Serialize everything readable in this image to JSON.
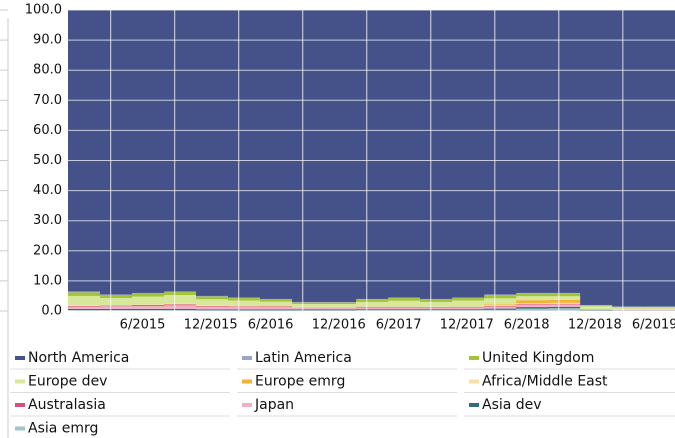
{
  "chart_data": {
    "type": "stacked_area",
    "x": [
      "2/2015",
      "5/2015",
      "8/2015",
      "11/2015",
      "2/2016",
      "5/2016",
      "8/2016",
      "11/2016",
      "2/2017",
      "5/2017",
      "8/2017",
      "11/2017",
      "2/2018",
      "5/2018",
      "8/2018",
      "11/2018",
      "2/2019",
      "5/2019",
      "8/2019"
    ],
    "xlim": [
      "2/2015",
      "2/2020"
    ],
    "xticks": [
      "6/2015",
      "12/2015",
      "6/2016",
      "12/2016",
      "6/2017",
      "12/2017",
      "6/2018",
      "12/2018",
      "6/2019"
    ],
    "ylim": [
      0,
      100
    ],
    "yticks": [
      {
        "value": 0,
        "label": "0.0"
      },
      {
        "value": 10,
        "label": "10.0"
      },
      {
        "value": 20,
        "label": "20.0"
      },
      {
        "value": 30,
        "label": "30.0"
      },
      {
        "value": 40,
        "label": "40.0"
      },
      {
        "value": 50,
        "label": "50.0"
      },
      {
        "value": 60,
        "label": "60.0"
      },
      {
        "value": 70,
        "label": "70.0"
      },
      {
        "value": 80,
        "label": "80.0"
      },
      {
        "value": 90,
        "label": "90.0"
      },
      {
        "value": 100,
        "label": "100.0"
      }
    ],
    "grid": true,
    "series": [
      {
        "name": "North America",
        "color": "#45528a",
        "values": [
          93.5,
          94.5,
          94,
          93.5,
          95,
          95.5,
          96,
          97,
          97,
          96,
          95.5,
          96,
          95.5,
          94.5,
          94,
          94,
          98,
          98.5,
          98.5
        ]
      },
      {
        "name": "Latin America",
        "color": "#9aa4c8",
        "values": [
          0.3,
          0.2,
          0.2,
          0.2,
          0.2,
          0.2,
          0.2,
          0.2,
          0.2,
          0.2,
          0.2,
          0.2,
          0.2,
          0.3,
          0.3,
          0.3,
          0.1,
          0.1,
          0.1
        ]
      },
      {
        "name": "United Kingdom",
        "color": "#a3c43a",
        "values": [
          1.2,
          1.0,
          1.0,
          1.0,
          0.9,
          0.8,
          0.7,
          0.5,
          0.5,
          0.8,
          0.9,
          0.8,
          0.8,
          1.0,
          0.8,
          0.8,
          0.3,
          0.2,
          0.2
        ]
      },
      {
        "name": "Europe dev",
        "color": "#d7e89a",
        "values": [
          3.1,
          2.3,
          2.6,
          2.9,
          2.0,
          1.7,
          1.5,
          1.1,
          1.1,
          1.5,
          1.9,
          1.6,
          2.0,
          2.0,
          1.3,
          1.2,
          0.9,
          0.7,
          0.7
        ]
      },
      {
        "name": "Europe emrg",
        "color": "#f5b335",
        "values": [
          0,
          0,
          0,
          0,
          0,
          0,
          0,
          0,
          0,
          0,
          0,
          0,
          0,
          0.3,
          1.0,
          1.0,
          0,
          0,
          0
        ]
      },
      {
        "name": "Africa/Middle East",
        "color": "#f7dfa8",
        "values": [
          0.2,
          0.2,
          0.2,
          0.2,
          0.2,
          0.2,
          0.1,
          0.1,
          0.1,
          0.1,
          0.1,
          0.1,
          0.1,
          0.2,
          0.3,
          0.3,
          0.1,
          0.1,
          0.1
        ]
      },
      {
        "name": "Australasia",
        "color": "#d94f7a",
        "values": [
          0.2,
          0.2,
          0.3,
          0.3,
          0.2,
          0.2,
          0.2,
          0.1,
          0.1,
          0.2,
          0.2,
          0.2,
          0.2,
          0.2,
          0.2,
          0.2,
          0.1,
          0.1,
          0.1
        ]
      },
      {
        "name": "Japan",
        "color": "#efb0c3",
        "values": [
          0.8,
          0.9,
          1.0,
          1.2,
          1.0,
          0.9,
          0.8,
          0.5,
          0.5,
          0.6,
          0.6,
          0.5,
          0.6,
          0.7,
          0.8,
          0.8,
          0.2,
          0.1,
          0.1
        ]
      },
      {
        "name": "Asia dev",
        "color": "#2e6f7a",
        "values": [
          0.4,
          0.4,
          0.4,
          0.4,
          0.3,
          0.3,
          0.3,
          0.3,
          0.3,
          0.3,
          0.3,
          0.3,
          0.3,
          0.4,
          0.5,
          0.5,
          0.2,
          0.1,
          0.1
        ]
      },
      {
        "name": "Asia emrg",
        "color": "#a4c5c6",
        "values": [
          0.3,
          0.3,
          0.3,
          0.3,
          0.2,
          0.2,
          0.2,
          0.2,
          0.2,
          0.3,
          0.3,
          0.3,
          0.3,
          0.4,
          0.8,
          0.9,
          0.1,
          0.1,
          0.1
        ]
      }
    ]
  }
}
